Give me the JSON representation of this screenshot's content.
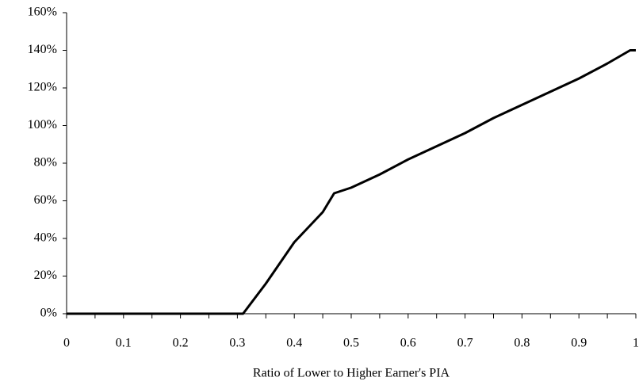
{
  "chart_data": {
    "type": "line",
    "x_label": "Ratio of Lower to Higher Earner's PIA",
    "x": [
      0,
      0.3,
      0.31,
      0.35,
      0.4,
      0.45,
      0.47,
      0.5,
      0.55,
      0.6,
      0.65,
      0.7,
      0.75,
      0.8,
      0.85,
      0.9,
      0.95,
      0.99,
      1
    ],
    "values": [
      0,
      0,
      0,
      16,
      38,
      54,
      64,
      67,
      74,
      82,
      89,
      96,
      104,
      111,
      118,
      125,
      133,
      140,
      140
    ],
    "color": "#000000",
    "xlim": [
      0,
      1
    ],
    "xticks": [
      0,
      0.1,
      0.2,
      0.3,
      0.4,
      0.5,
      0.6,
      0.7,
      0.8,
      0.9,
      1
    ],
    "xminor_ticks": [
      0.05,
      0.15,
      0.25,
      0.35,
      0.45,
      0.55,
      0.65,
      0.75,
      0.85,
      0.95
    ],
    "ylim": [
      0,
      160
    ],
    "yticks": [
      {
        "value": 0,
        "label": "0%"
      },
      {
        "value": 20,
        "label": "20%"
      },
      {
        "value": 40,
        "label": "40%"
      },
      {
        "value": 60,
        "label": "60%"
      },
      {
        "value": 80,
        "label": "80%"
      },
      {
        "value": 100,
        "label": "100%"
      },
      {
        "value": 120,
        "label": "120%"
      },
      {
        "value": 140,
        "label": "140%"
      },
      {
        "value": 160,
        "label": "160%"
      }
    ],
    "grid": false
  }
}
